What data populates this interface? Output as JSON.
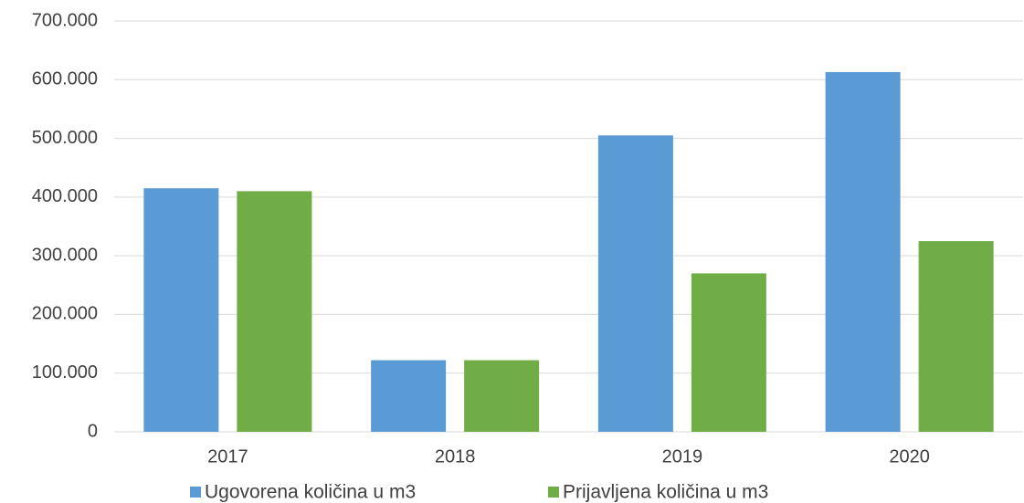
{
  "chart_data": {
    "type": "bar",
    "categories": [
      "2017",
      "2018",
      "2019",
      "2020"
    ],
    "series": [
      {
        "name": "Ugovorena količina u m3",
        "color": "#5b9bd5",
        "values": [
          415000,
          122000,
          505000,
          613000
        ]
      },
      {
        "name": "Prijavljena količina u m3",
        "color": "#70ad47",
        "values": [
          410000,
          122000,
          270000,
          325000
        ]
      }
    ],
    "ylim": [
      0,
      700000
    ],
    "yticks": [
      0,
      {
        "value": 100000,
        "label": "100.000"
      },
      {
        "value": 200000,
        "label": "200.000"
      },
      {
        "value": 300000,
        "label": "300.000"
      },
      {
        "value": 400000,
        "label": "400.000"
      },
      {
        "value": 500000,
        "label": "500.000"
      },
      {
        "value": 600000,
        "label": "600.000"
      },
      {
        "value": 700000,
        "label": "700.000"
      }
    ],
    "grid": true,
    "legend": "bottom"
  }
}
